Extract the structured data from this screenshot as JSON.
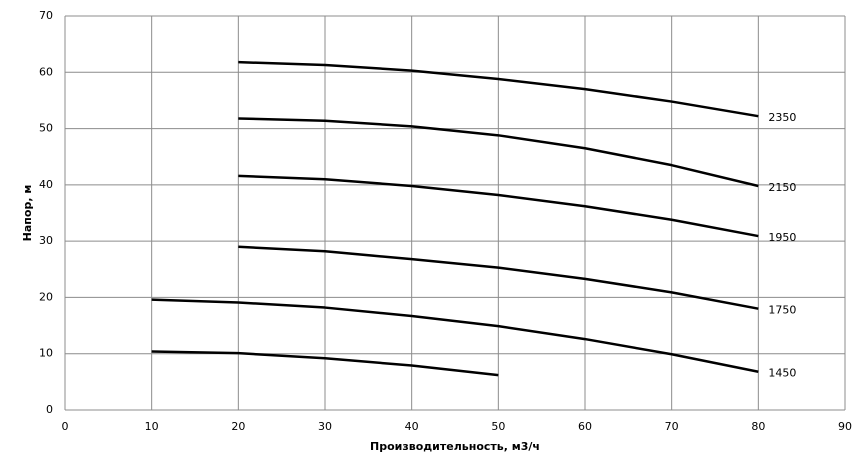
{
  "chart_data": {
    "type": "line",
    "x_label": "Производительность,  м3/ч",
    "y_label": "Напор, м",
    "x": [
      10,
      20,
      30,
      40,
      50,
      60,
      70,
      80
    ],
    "series": [
      {
        "name": "2350",
        "color": "#000000",
        "values": [
          null,
          61.8,
          61.3,
          60.3,
          58.8,
          57,
          54.8,
          52.2
        ]
      },
      {
        "name": "2150",
        "color": "#000000",
        "values": [
          null,
          51.8,
          51.4,
          50.4,
          48.8,
          46.5,
          43.5,
          39.8
        ]
      },
      {
        "name": "1950",
        "color": "#000000",
        "values": [
          null,
          41.6,
          41,
          39.8,
          38.2,
          36.2,
          33.8,
          30.9
        ]
      },
      {
        "name": "1750",
        "color": "#000000",
        "values": [
          null,
          29,
          28.2,
          26.8,
          25.3,
          23.3,
          20.9,
          18
        ]
      },
      {
        "name": "1450",
        "color": "#000000",
        "values": [
          19.6,
          19.1,
          18.2,
          16.7,
          14.9,
          12.6,
          9.9,
          6.8
        ]
      },
      {
        "color": "#000000",
        "values": [
          10.4,
          10.1,
          9.2,
          7.9,
          6.2,
          null,
          null,
          null
        ]
      }
    ],
    "xlim": [
      0,
      90
    ],
    "xticks": [
      0,
      10,
      20,
      30,
      40,
      50,
      60,
      70,
      80,
      90
    ],
    "ylim": [
      0,
      70
    ],
    "yticks": [
      0,
      10,
      20,
      30,
      40,
      50,
      60,
      70
    ],
    "grid": true
  }
}
